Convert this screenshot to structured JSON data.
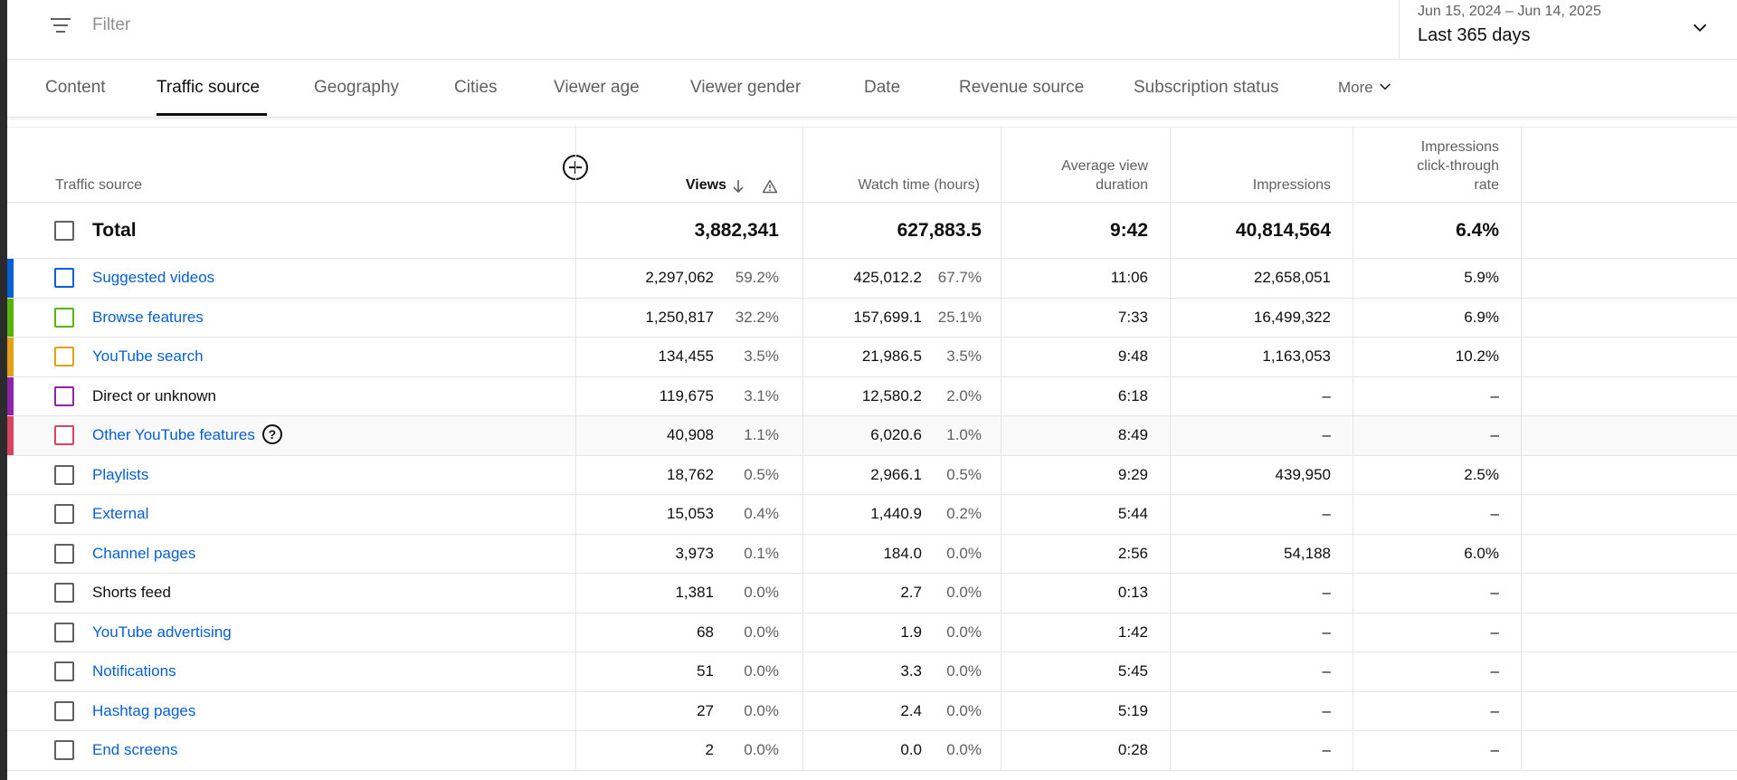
{
  "filter": {
    "placeholder": "Filter"
  },
  "date": {
    "range": "Jun 15, 2024 – Jun 14, 2025",
    "label": "Last 365 days"
  },
  "tabs": [
    {
      "label": "Content",
      "active": false
    },
    {
      "label": "Traffic source",
      "active": true
    },
    {
      "label": "Geography",
      "active": false
    },
    {
      "label": "Cities",
      "active": false
    },
    {
      "label": "Viewer age",
      "active": false
    },
    {
      "label": "Viewer gender",
      "active": false
    },
    {
      "label": "Date",
      "active": false
    },
    {
      "label": "Revenue source",
      "active": false
    },
    {
      "label": "Subscription status",
      "active": false
    },
    {
      "label": "More",
      "active": false
    }
  ],
  "table": {
    "headers": {
      "source": "Traffic source",
      "views": "Views",
      "watch_time": "Watch time (hours)",
      "avd_line1": "Average view",
      "avd_line2": "duration",
      "impressions": "Impressions",
      "ctr_line1": "Impressions",
      "ctr_line2": "click-through",
      "ctr_line3": "rate"
    },
    "total": {
      "label": "Total",
      "views": "3,882,341",
      "watch_time": "627,883.5",
      "avd": "9:42",
      "impressions": "40,814,564",
      "ctr": "6.4%"
    },
    "rows": [
      {
        "source": "Suggested videos",
        "link": true,
        "color": "#065fd4",
        "views": "2,297,062",
        "views_pct": "59.2%",
        "watch": "425,012.2",
        "watch_pct": "67.7%",
        "avd": "11:06",
        "impressions": "22,658,051",
        "ctr": "5.9%"
      },
      {
        "source": "Browse features",
        "link": true,
        "color": "#57b50a",
        "views": "1,250,817",
        "views_pct": "32.2%",
        "watch": "157,699.1",
        "watch_pct": "25.1%",
        "avd": "7:33",
        "impressions": "16,499,322",
        "ctr": "6.9%"
      },
      {
        "source": "YouTube search",
        "link": true,
        "color": "#e3a015",
        "views": "134,455",
        "views_pct": "3.5%",
        "watch": "21,986.5",
        "watch_pct": "3.5%",
        "avd": "9:48",
        "impressions": "1,163,053",
        "ctr": "10.2%"
      },
      {
        "source": "Direct or unknown",
        "link": false,
        "color": "#8d24aa",
        "views": "119,675",
        "views_pct": "3.1%",
        "watch": "12,580.2",
        "watch_pct": "2.0%",
        "avd": "6:18",
        "impressions": "–",
        "ctr": "–"
      },
      {
        "source": "Other YouTube features",
        "link": true,
        "color": "#d8445f",
        "help": "?",
        "views": "40,908",
        "views_pct": "1.1%",
        "watch": "6,020.6",
        "watch_pct": "1.0%",
        "avd": "8:49",
        "impressions": "–",
        "ctr": "–"
      },
      {
        "source": "Playlists",
        "link": true,
        "color": "",
        "views": "18,762",
        "views_pct": "0.5%",
        "watch": "2,966.1",
        "watch_pct": "0.5%",
        "avd": "9:29",
        "impressions": "439,950",
        "ctr": "2.5%"
      },
      {
        "source": "External",
        "link": true,
        "color": "",
        "views": "15,053",
        "views_pct": "0.4%",
        "watch": "1,440.9",
        "watch_pct": "0.2%",
        "avd": "5:44",
        "impressions": "–",
        "ctr": "–"
      },
      {
        "source": "Channel pages",
        "link": true,
        "color": "",
        "views": "3,973",
        "views_pct": "0.1%",
        "watch": "184.0",
        "watch_pct": "0.0%",
        "avd": "2:56",
        "impressions": "54,188",
        "ctr": "6.0%"
      },
      {
        "source": "Shorts feed",
        "link": false,
        "color": "",
        "views": "1,381",
        "views_pct": "0.0%",
        "watch": "2.7",
        "watch_pct": "0.0%",
        "avd": "0:13",
        "impressions": "–",
        "ctr": "–"
      },
      {
        "source": "YouTube advertising",
        "link": true,
        "color": "",
        "views": "68",
        "views_pct": "0.0%",
        "watch": "1.9",
        "watch_pct": "0.0%",
        "avd": "1:42",
        "impressions": "–",
        "ctr": "–"
      },
      {
        "source": "Notifications",
        "link": true,
        "color": "",
        "views": "51",
        "views_pct": "0.0%",
        "watch": "3.3",
        "watch_pct": "0.0%",
        "avd": "5:45",
        "impressions": "–",
        "ctr": "–"
      },
      {
        "source": "Hashtag pages",
        "link": true,
        "color": "",
        "views": "27",
        "views_pct": "0.0%",
        "watch": "2.4",
        "watch_pct": "0.0%",
        "avd": "5:19",
        "impressions": "–",
        "ctr": "–"
      },
      {
        "source": "End screens",
        "link": true,
        "color": "",
        "views": "2",
        "views_pct": "0.0%",
        "watch": "0.0",
        "watch_pct": "0.0%",
        "avd": "0:28",
        "impressions": "–",
        "ctr": "–"
      }
    ]
  },
  "icons": {
    "filter": "filter-icon",
    "chevron": "chevron-down-icon",
    "add_column": "add-circle-icon",
    "sort": "arrow-down-icon",
    "warning": "warning-icon",
    "help": "help-icon"
  }
}
